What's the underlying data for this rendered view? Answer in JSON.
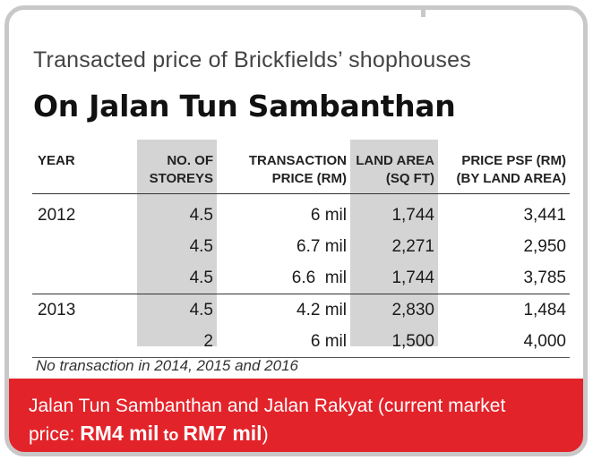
{
  "subtitle": "Transacted price of Brickfields’ shophouses",
  "title": "On Jalan Tun Sambanthan",
  "table": {
    "headers": [
      [
        "YEAR",
        ""
      ],
      [
        "NO. OF",
        "STOREYS"
      ],
      [
        "TRANSACTION",
        "PRICE (RM)"
      ],
      [
        "LAND AREA",
        "(SQ FT)"
      ],
      [
        "PRICE PSF (RM)",
        "(BY LAND AREA)"
      ]
    ],
    "rows": [
      [
        "2012",
        "4.5",
        "6 mil",
        "1,744",
        "3,441"
      ],
      [
        "",
        "4.5",
        "6.7 mil",
        "2,271",
        "2,950"
      ],
      [
        "",
        "4.5",
        "6.6  mil",
        "1,744",
        "3,785"
      ],
      [
        "2013",
        "4.5",
        "4.2 mil",
        "2,830",
        "1,484"
      ],
      [
        "",
        "2",
        "6 mil",
        "1,500",
        "4,000"
      ]
    ],
    "shade_color": "#d4d4d4"
  },
  "note": "No transaction in 2014, 2015 and 2016",
  "footer": {
    "line1": "Jalan Tun Sambanthan and Jalan Rakyat (current market",
    "prefix": "price: ",
    "low": "RM4 mil",
    "to": " to ",
    "high": "RM7 mil",
    "suffix": ")",
    "background": "#e3232a"
  },
  "frame_color": "#c8c8c8"
}
